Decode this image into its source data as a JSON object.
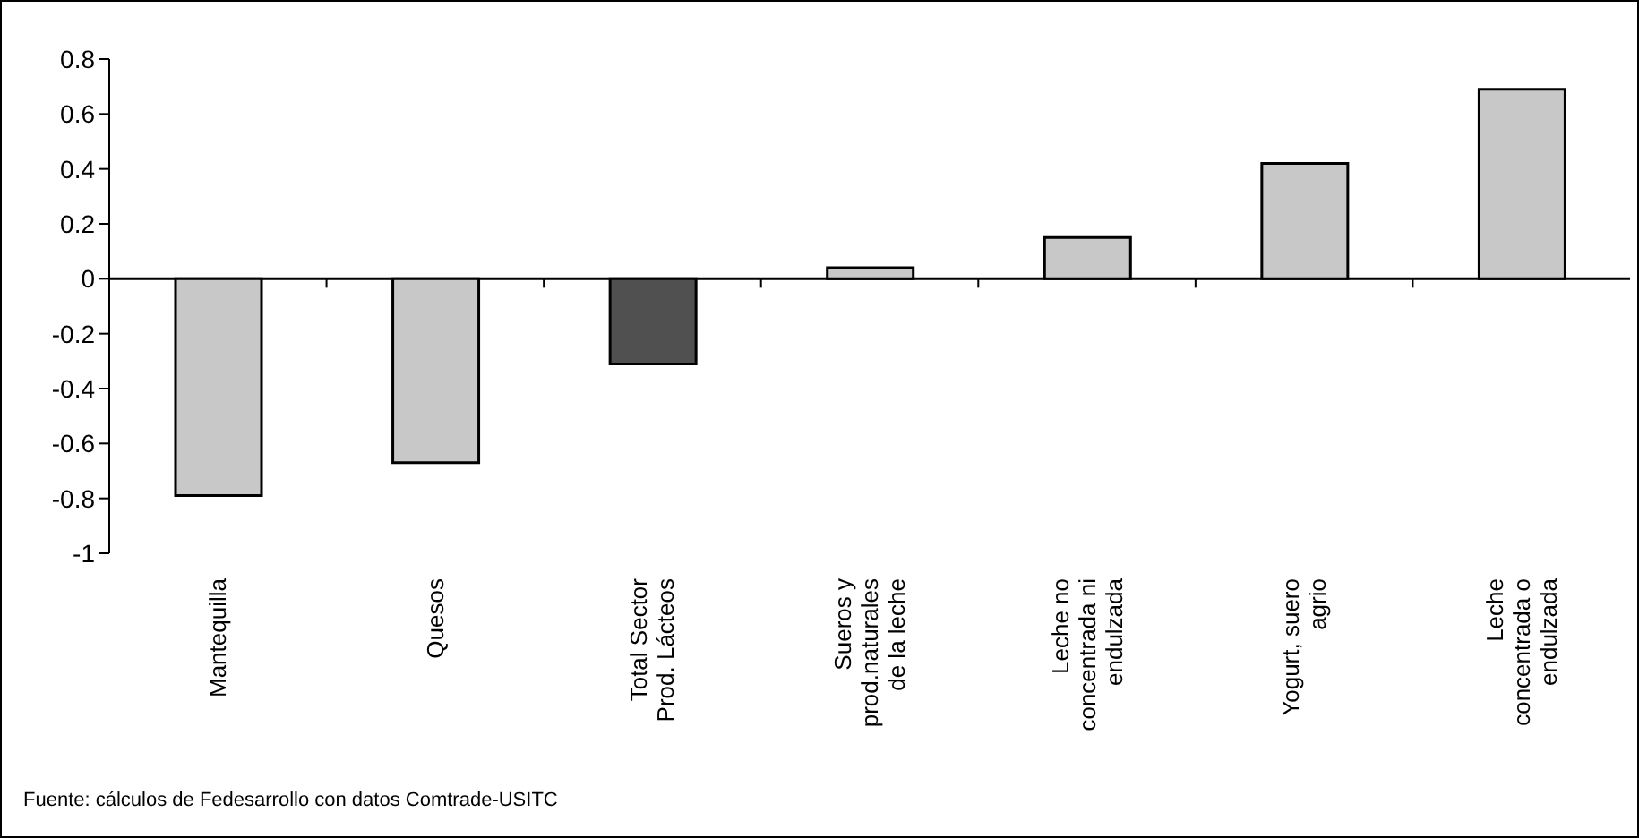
{
  "chart_data": {
    "type": "bar",
    "categories": [
      "Mantequilla",
      "Quesos",
      "Total Sector\nProd. Lácteos",
      "Sueros y\nprod.naturales\nde la leche",
      "Leche no\nconcentrada ni\nendulzada",
      "Yogurt, suero\nagrio",
      "Leche\nconcentrada o\nendulzada"
    ],
    "values": [
      -0.79,
      -0.67,
      -0.31,
      0.04,
      0.15,
      0.42,
      0.69
    ],
    "colors": [
      "#c8c8c8",
      "#c8c8c8",
      "#505050",
      "#c8c8c8",
      "#c8c8c8",
      "#c8c8c8",
      "#c8c8c8"
    ],
    "ylim": [
      -1,
      0.8
    ],
    "yticks": [
      -1,
      -0.8,
      -0.6,
      -0.4,
      -0.2,
      0,
      0.2,
      0.4,
      0.6,
      0.8
    ],
    "legend": false,
    "annotations": [
      "Fuente: cálculos de Fedesarrollo con datos Comtrade-USITC"
    ]
  }
}
